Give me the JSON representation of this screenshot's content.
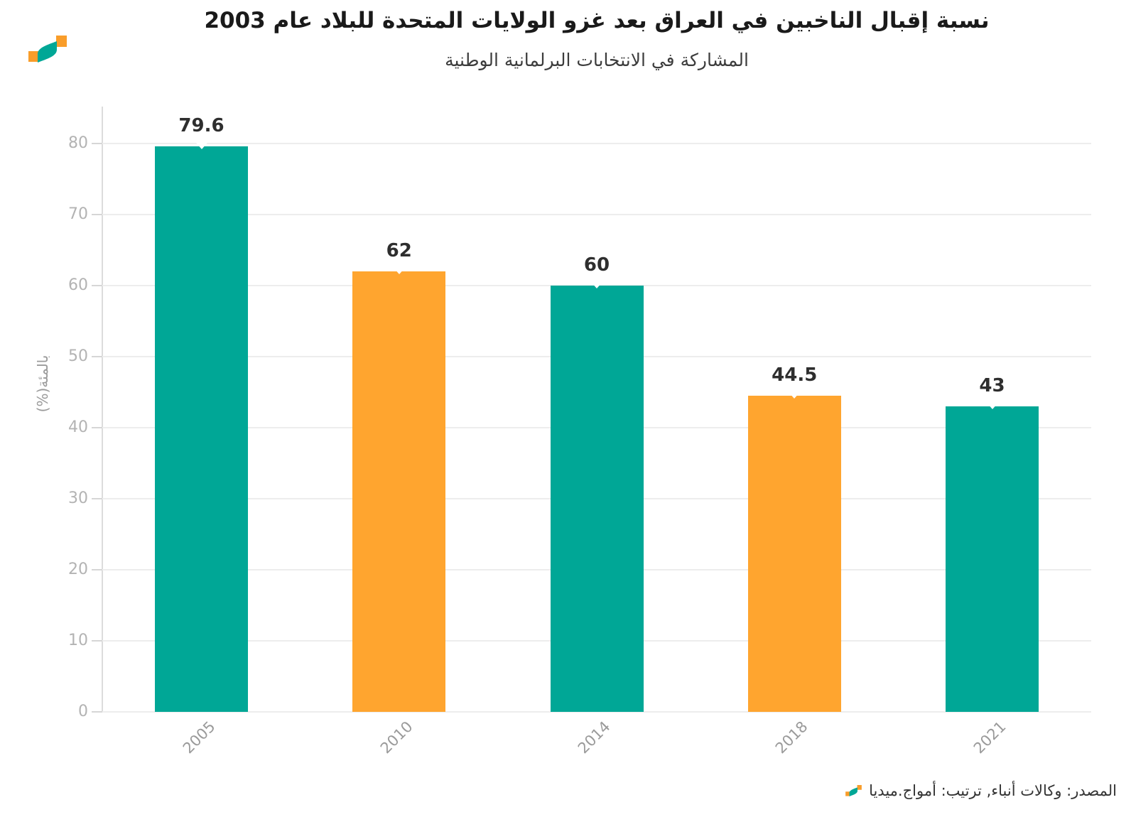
{
  "header": {
    "title": "نسبة إقبال الناخبين في العراق بعد غزو الولايات المتحدة للبلاد عام 2003",
    "subtitle": "المشاركة في الانتخابات البرلمانية الوطنية"
  },
  "chart_data": {
    "type": "bar",
    "categories": [
      "2005",
      "2010",
      "2014",
      "2018",
      "2021"
    ],
    "values": [
      79.6,
      62,
      60,
      44.5,
      43
    ],
    "value_labels": [
      "79.6",
      "62",
      "60",
      "44.5",
      "43"
    ],
    "bar_colors": [
      "#00A796",
      "#FFA52F",
      "#00A796",
      "#FFA52F",
      "#00A796"
    ],
    "title": "نسبة إقبال الناخبين في العراق بعد غزو الولايات المتحدة للبلاد عام 2003",
    "subtitle": "المشاركة في الانتخابات البرلمانية الوطنية",
    "xlabel": "",
    "ylabel": "بالمئة(%)",
    "ylim": [
      0,
      80
    ],
    "y_ticks": [
      0,
      10,
      20,
      30,
      40,
      50,
      60,
      70,
      80
    ],
    "grid": true,
    "legend": false
  },
  "footer": {
    "source": "المصدر: وكالات أنباء, ترتيب: أمواج.ميديا"
  },
  "branding": {
    "logo_name": "amwaj-media-logo",
    "orange": "#F99D2A",
    "teal": "#00A796"
  }
}
